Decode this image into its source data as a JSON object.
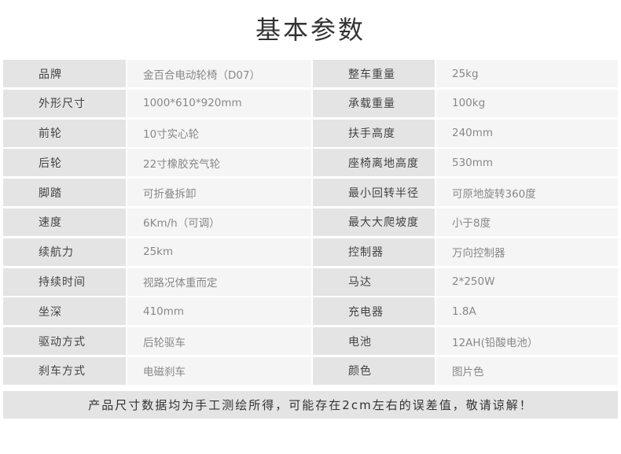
{
  "title": "基本参数",
  "rows": [
    {
      "l1": "品牌",
      "v1": "金百合电动轮椅（D07）",
      "l2": "整车重量",
      "v2": "25kg"
    },
    {
      "l1": "外形尺寸",
      "v1": "1000*610*920mm",
      "l2": "承载重量",
      "v2": "100kg"
    },
    {
      "l1": "前轮",
      "v1": "10寸实心轮",
      "l2": "扶手高度",
      "v2": "240mm"
    },
    {
      "l1": "后轮",
      "v1": "22寸橡胶充气轮",
      "l2": "座椅离地高度",
      "v2": "530mm"
    },
    {
      "l1": "脚踏",
      "v1": "可折叠拆卸",
      "l2": "最小回转半径",
      "v2": "可原地旋转360度"
    },
    {
      "l1": "速度",
      "v1": "6Km/h（可调）",
      "l2": "最大大爬坡度",
      "v2": "小于8度"
    },
    {
      "l1": "续航力",
      "v1": "25km",
      "l2": "控制器",
      "v2": "万向控制器"
    },
    {
      "l1": "持续时间",
      "v1": "视路况体重而定",
      "l2": "马达",
      "v2": "2*250W"
    },
    {
      "l1": "坐深",
      "v1": "410mm",
      "l2": "充电器",
      "v2": "1.8A"
    },
    {
      "l1": "驱动方式",
      "v1": "后轮驱车",
      "l2": "电池",
      "v2": "12AH(铅酸电池）"
    },
    {
      "l1": "刹车方式",
      "v1": "电磁刹车",
      "l2": "颜色",
      "v2": "图片色"
    }
  ],
  "footer": "产品尺寸数据均为手工测绘所得，可能存在2cm左右的误差值，敬请谅解！"
}
